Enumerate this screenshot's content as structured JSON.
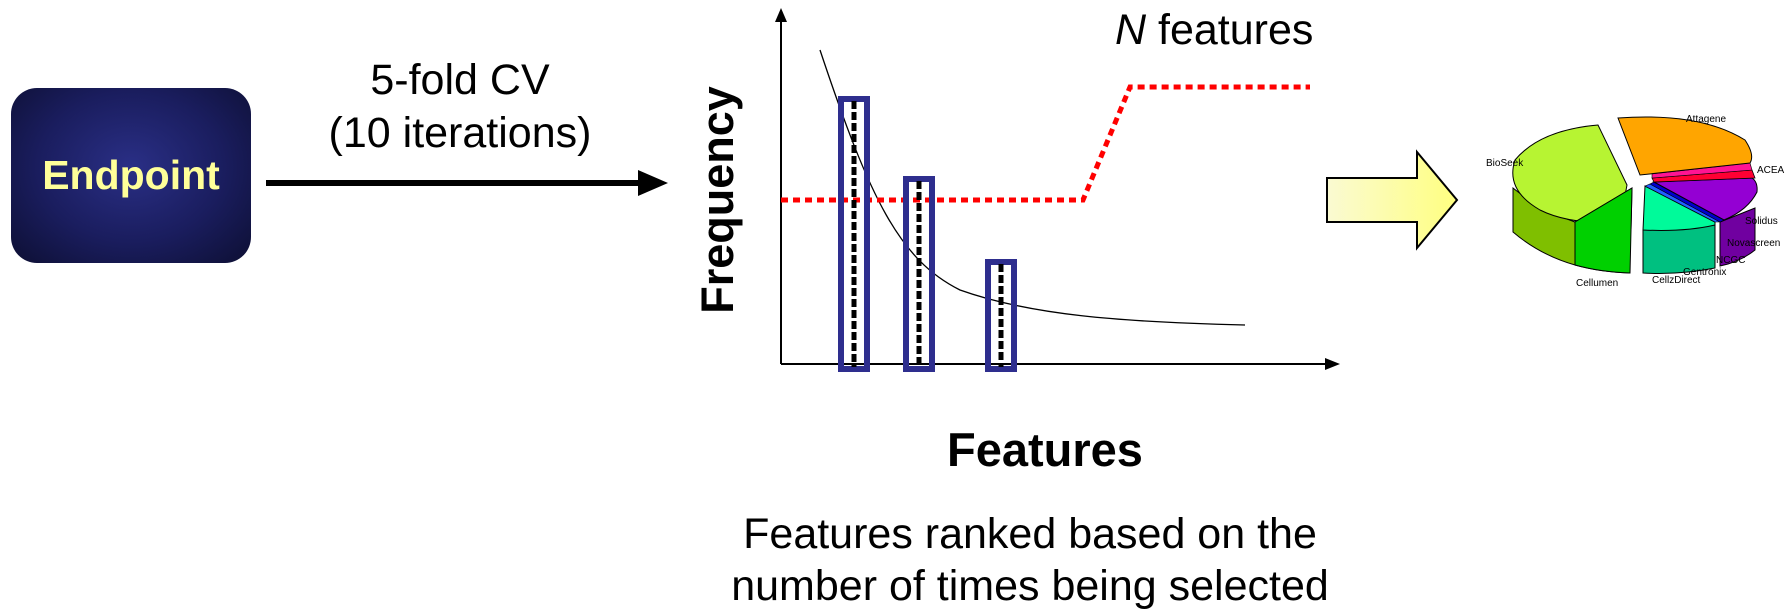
{
  "endpoint": {
    "label": "Endpoint",
    "bg_color": "#1a1d5e",
    "text_color": "#ffff99"
  },
  "cv": {
    "line1": "5-fold CV",
    "line2": "(10 iterations)"
  },
  "plot": {
    "ylabel": "Frequency",
    "xlabel": "Features",
    "threshold_label_italic": "N",
    "threshold_label_rest": " features",
    "threshold_color": "#ff0000",
    "box_color": "#2e2e8e"
  },
  "caption": {
    "line1": "Features ranked based on the",
    "line2": "number of times being selected"
  },
  "arrow": {
    "fill": "#ffff99"
  },
  "pie": {
    "labels": {
      "attagene": "Attagene",
      "biosek": "BioSeek",
      "acea": "ACEA",
      "solidus": "Solidus",
      "novascreen": "Novascreen",
      "ncgc": "NCGC",
      "gentronix": "Gentronix",
      "cellzdirect": "CellzDirect",
      "cellumen": "Cellumen"
    },
    "colors": {
      "attagene": "#ffa500",
      "biosek": "#b7f432",
      "acea": "#ff0033",
      "solidus": "#9400d3",
      "novascreen": "#0000cd",
      "ncgc": "#4169e1",
      "cellzdirect": "#00fa9a",
      "cellumen": "#00e000"
    }
  }
}
